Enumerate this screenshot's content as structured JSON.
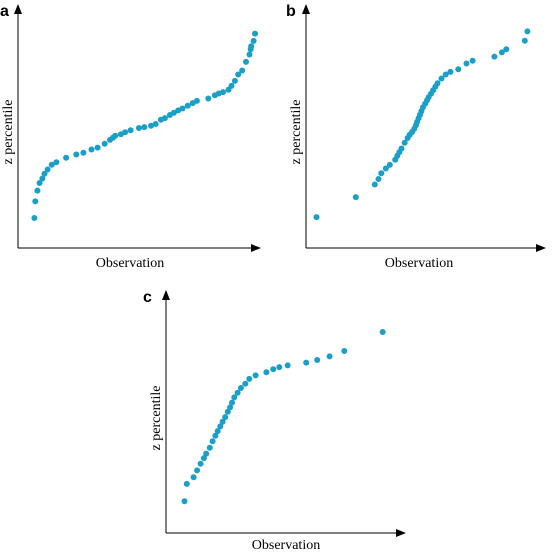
{
  "chart_data": [
    {
      "type": "scatter",
      "panel": "a",
      "xlabel": "Observation",
      "ylabel": "z percentile",
      "grid": false,
      "xlim": [
        0,
        100
      ],
      "ylim": [
        0,
        100
      ],
      "points": [
        [
          6.9,
          12.6
        ],
        [
          7.3,
          19.6
        ],
        [
          8.2,
          24.1
        ],
        [
          9.1,
          27.3
        ],
        [
          10.3,
          29.2
        ],
        [
          11.2,
          31.2
        ],
        [
          12.5,
          33.0
        ],
        [
          14.2,
          35.0
        ],
        [
          16.2,
          36.0
        ],
        [
          20.3,
          37.9
        ],
        [
          24.6,
          39.3
        ],
        [
          27.6,
          40.0
        ],
        [
          31.0,
          41.4
        ],
        [
          33.6,
          42.2
        ],
        [
          36.6,
          43.8
        ],
        [
          38.8,
          45.4
        ],
        [
          40.1,
          46.3
        ],
        [
          41.0,
          47.2
        ],
        [
          43.4,
          47.8
        ],
        [
          45.2,
          48.6
        ],
        [
          47.5,
          49.5
        ],
        [
          51.0,
          50.4
        ],
        [
          53.3,
          50.8
        ],
        [
          56.1,
          51.4
        ],
        [
          58.1,
          52.1
        ],
        [
          60.3,
          53.9
        ],
        [
          62.0,
          54.6
        ],
        [
          64.1,
          55.9
        ],
        [
          65.8,
          56.8
        ],
        [
          67.6,
          57.8
        ],
        [
          69.4,
          58.6
        ],
        [
          71.6,
          59.8
        ],
        [
          73.7,
          60.9
        ],
        [
          75.5,
          61.8
        ],
        [
          80.3,
          62.8
        ],
        [
          83.1,
          64.2
        ],
        [
          84.7,
          64.9
        ],
        [
          86.5,
          65.5
        ],
        [
          88.8,
          66.5
        ],
        [
          90.1,
          68.1
        ],
        [
          91.5,
          70.2
        ],
        [
          92.9,
          72.9
        ],
        [
          94.6,
          74.6
        ],
        [
          96.2,
          78.2
        ],
        [
          97.7,
          81.3
        ],
        [
          98.2,
          83.5
        ],
        [
          98.4,
          84.8
        ],
        [
          99.4,
          87.0
        ],
        [
          100.0,
          90.1
        ]
      ]
    },
    {
      "type": "scatter",
      "panel": "b",
      "xlabel": "Observation",
      "ylabel": "z percentile",
      "grid": false,
      "xlim": [
        0,
        100
      ],
      "ylim": [
        0,
        100
      ],
      "points": [
        [
          4.5,
          13.0
        ],
        [
          21.3,
          21.4
        ],
        [
          29.4,
          26.7
        ],
        [
          31.0,
          29.0
        ],
        [
          32.2,
          31.4
        ],
        [
          34.1,
          33.4
        ],
        [
          35.8,
          34.9
        ],
        [
          38.1,
          37.1
        ],
        [
          39.0,
          38.7
        ],
        [
          39.9,
          40.3
        ],
        [
          40.8,
          41.8
        ],
        [
          42.2,
          44.2
        ],
        [
          43.4,
          46.2
        ],
        [
          44.3,
          47.6
        ],
        [
          45.4,
          48.8
        ],
        [
          46.3,
          50.1
        ],
        [
          47.0,
          51.6
        ],
        [
          47.5,
          53.0
        ],
        [
          48.1,
          54.5
        ],
        [
          48.7,
          56.0
        ],
        [
          49.3,
          57.5
        ],
        [
          50.0,
          59.1
        ],
        [
          50.9,
          60.6
        ],
        [
          51.7,
          62.0
        ],
        [
          52.4,
          63.3
        ],
        [
          53.4,
          64.8
        ],
        [
          54.3,
          66.3
        ],
        [
          55.3,
          67.8
        ],
        [
          56.2,
          69.2
        ],
        [
          57.9,
          71.2
        ],
        [
          59.7,
          72.9
        ],
        [
          61.7,
          74.0
        ],
        [
          65.1,
          75.1
        ],
        [
          68.6,
          77.5
        ],
        [
          71.2,
          78.7
        ],
        [
          80.5,
          80.4
        ],
        [
          83.7,
          82.2
        ],
        [
          85.6,
          83.5
        ],
        [
          93.5,
          87.1
        ],
        [
          94.6,
          91.0
        ]
      ]
    },
    {
      "type": "scatter",
      "panel": "c",
      "xlabel": "Observation",
      "ylabel": "z percentile",
      "grid": false,
      "xlim": [
        0,
        100
      ],
      "ylim": [
        0,
        100
      ],
      "points": [
        [
          7.9,
          13.4
        ],
        [
          8.9,
          20.7
        ],
        [
          11.8,
          23.5
        ],
        [
          13.3,
          26.4
        ],
        [
          14.8,
          29.2
        ],
        [
          16.2,
          31.6
        ],
        [
          17.2,
          33.5
        ],
        [
          18.7,
          36.0
        ],
        [
          19.9,
          38.7
        ],
        [
          21.1,
          41.0
        ],
        [
          22.1,
          43.0
        ],
        [
          23.2,
          45.0
        ],
        [
          24.2,
          46.9
        ],
        [
          25.3,
          48.9
        ],
        [
          26.4,
          51.2
        ],
        [
          27.4,
          53.0
        ],
        [
          28.2,
          55.0
        ],
        [
          29.2,
          57.2
        ],
        [
          30.6,
          59.2
        ],
        [
          32.0,
          61.2
        ],
        [
          33.9,
          63.0
        ],
        [
          35.6,
          65.0
        ],
        [
          38.3,
          66.5
        ],
        [
          42.9,
          67.8
        ],
        [
          45.8,
          69.1
        ],
        [
          48.4,
          70.0
        ],
        [
          52.0,
          70.7
        ],
        [
          59.9,
          71.9
        ],
        [
          64.6,
          73.0
        ],
        [
          69.9,
          74.5
        ],
        [
          76.2,
          76.8
        ],
        [
          92.6,
          84.8
        ]
      ]
    }
  ]
}
